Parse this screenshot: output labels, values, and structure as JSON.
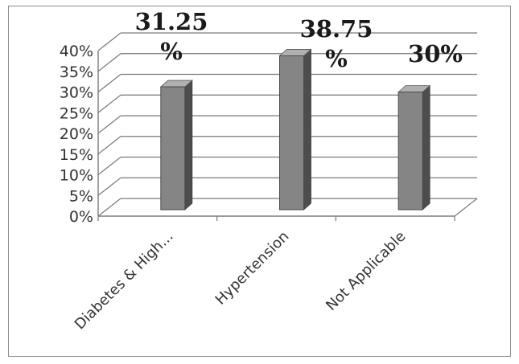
{
  "chart_data": {
    "type": "bar",
    "style": "3d-column",
    "categories": [
      "Diabetes & High...",
      "Hypertension",
      "Not Applicable"
    ],
    "values": [
      31.25,
      38.75,
      30
    ],
    "data_labels": [
      [
        "31.25",
        "%"
      ],
      [
        "38.75",
        "%"
      ],
      [
        "30%"
      ]
    ],
    "yticks": [
      "0%",
      "5%",
      "10%",
      "15%",
      "20%",
      "25%",
      "30%",
      "35%",
      "40%"
    ],
    "ylim": [
      0,
      40
    ],
    "grid": true,
    "legend": "none",
    "colors": {
      "bar_front": "#858585",
      "bar_side": "#4d4d4d",
      "bar_top": "#b0b0b0",
      "gridline": "#7a7a7a",
      "frame": "#8c8c8c"
    }
  }
}
